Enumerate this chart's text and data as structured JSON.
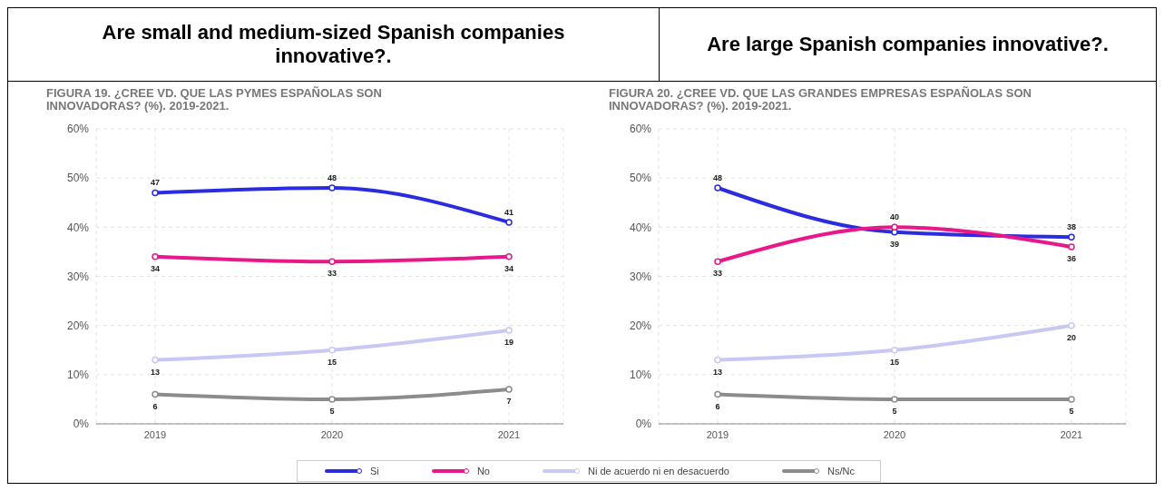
{
  "chart_data": [
    {
      "type": "line",
      "title": "Are small and medium-sized Spanish companies innovative?.",
      "subtitle": "FIGURA 19. ¿CREE VD. QUE LAS PYMES ESPAÑOLAS SON INNOVADORAS? (%). 2019-2021.",
      "categories": [
        "2019",
        "2020",
        "2021"
      ],
      "series": [
        {
          "name": "Si",
          "color": "#2b2be0",
          "values": [
            47,
            48,
            41
          ]
        },
        {
          "name": "No",
          "color": "#e8178a",
          "values": [
            34,
            33,
            34
          ]
        },
        {
          "name": "Ni de acuerdo ni en desacuerdo",
          "color": "#c8c8f4",
          "values": [
            13,
            15,
            19
          ]
        },
        {
          "name": "Ns/Nc",
          "color": "#8c8c8c",
          "values": [
            6,
            5,
            7
          ]
        }
      ],
      "ylim": [
        0,
        60
      ],
      "yticks": [
        {
          "value": 0,
          "label": "0%"
        },
        {
          "value": 10,
          "label": "10%"
        },
        {
          "value": 20,
          "label": "20%"
        },
        {
          "value": 30,
          "label": "30%"
        },
        {
          "value": 40,
          "label": "40%"
        },
        {
          "value": 50,
          "label": "50%"
        },
        {
          "value": 60,
          "label": "60%"
        }
      ],
      "grid": true,
      "marker": "circle",
      "data_labels": true,
      "legend": "bottom"
    },
    {
      "type": "line",
      "title": "Are large Spanish companies innovative?.",
      "subtitle": "FIGURA 20. ¿CREE VD. QUE LAS GRANDES EMPRESAS ESPAÑOLAS SON INNOVADORAS? (%). 2019-2021.",
      "categories": [
        "2019",
        "2020",
        "2021"
      ],
      "series": [
        {
          "color": "#2b2be0",
          "values": [
            48,
            39,
            38
          ]
        },
        {
          "color": "#e8178a",
          "values": [
            33,
            40,
            36
          ]
        },
        {
          "color": "#c8c8f4",
          "values": [
            13,
            15,
            20
          ]
        },
        {
          "color": "#8c8c8c",
          "values": [
            6,
            5,
            5
          ]
        }
      ],
      "ylim": [
        0,
        60
      ],
      "yticks": [
        {
          "value": 0,
          "label": "0%"
        },
        {
          "value": 10,
          "label": "10%"
        },
        {
          "value": 20,
          "label": "20%"
        },
        {
          "value": 30,
          "label": "30%"
        },
        {
          "value": 40,
          "label": "40%"
        },
        {
          "value": 50,
          "label": "50%"
        },
        {
          "value": 60,
          "label": "60%"
        }
      ],
      "grid": true,
      "marker": "circle",
      "data_labels": true
    }
  ]
}
